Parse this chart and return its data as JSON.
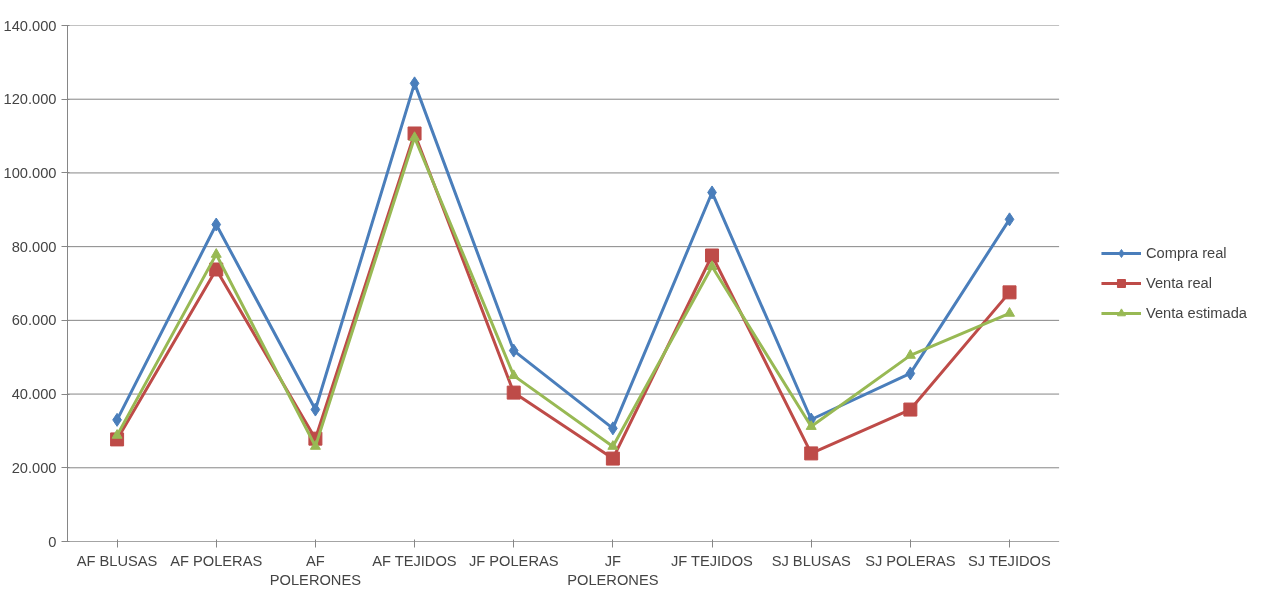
{
  "chart_data": {
    "type": "line",
    "categories": [
      "AF BLUSAS",
      "AF POLERAS",
      "AF POLERONES",
      "AF TEJIDOS",
      "JF POLERAS",
      "JF POLERONES",
      "JF TEJIDOS",
      "SJ BLUSAS",
      "SJ POLERAS",
      "SJ TEJIDOS"
    ],
    "series": [
      {
        "name": "Compra real",
        "color": "#4a7ebb",
        "marker": "diamond",
        "values": [
          33000,
          86000,
          35800,
          124300,
          51800,
          30700,
          94700,
          33100,
          45600,
          87400
        ]
      },
      {
        "name": "Venta real",
        "color": "#be4b48",
        "marker": "square",
        "values": [
          27700,
          73800,
          27900,
          110700,
          40400,
          22500,
          77600,
          23900,
          35800,
          67600
        ]
      },
      {
        "name": "Venta estimada",
        "color": "#98b954",
        "marker": "triangle",
        "values": [
          28800,
          77900,
          25800,
          109600,
          45000,
          25800,
          74600,
          31200,
          50500,
          61900
        ]
      }
    ],
    "ylim": [
      0,
      140000
    ],
    "yticks": [
      0,
      {
        "value": 20000,
        "label": "20.000"
      },
      {
        "value": 40000,
        "label": "40.000"
      },
      {
        "value": 60000,
        "label": "60.000"
      },
      {
        "value": 80000,
        "label": "80.000"
      },
      {
        "value": 100000,
        "label": "100.000"
      },
      {
        "value": 120000,
        "label": "120.000"
      },
      {
        "value": 140000,
        "label": "140.000"
      }
    ],
    "grid": "y",
    "legend": "right",
    "line_style": "solid"
  }
}
